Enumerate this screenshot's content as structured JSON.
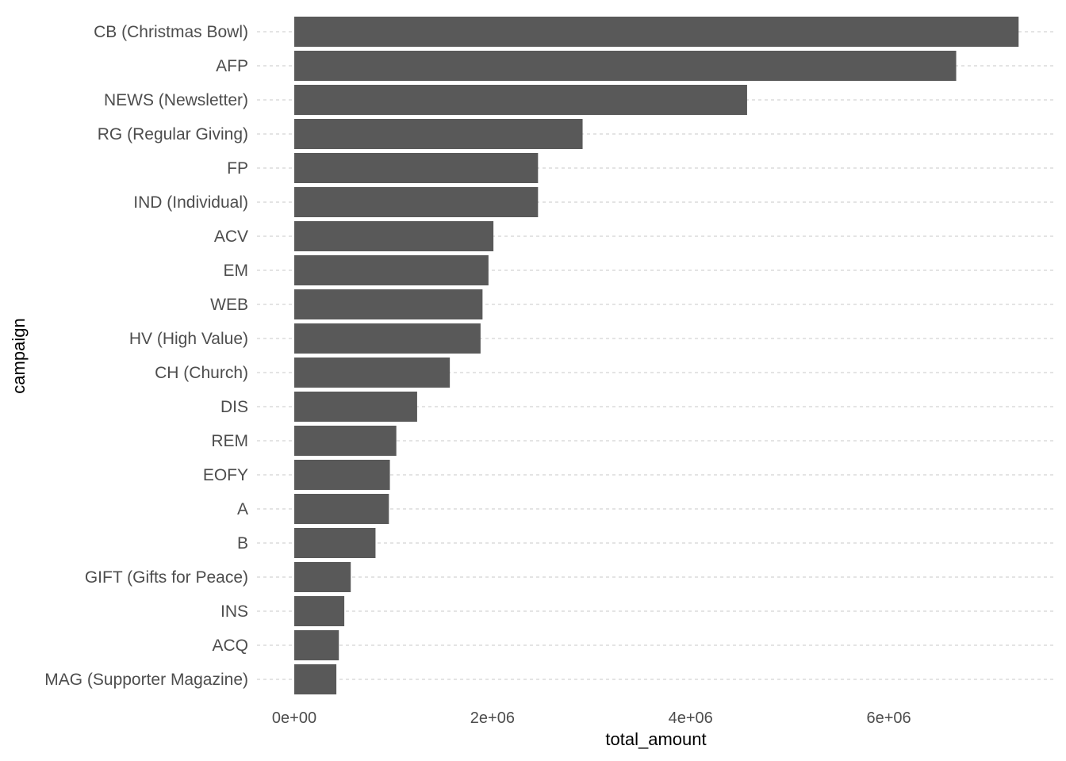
{
  "chart_data": {
    "type": "bar",
    "orientation": "horizontal",
    "xlabel": "total_amount",
    "ylabel": "campaign",
    "xlim": [
      0,
      7300000
    ],
    "x_ticks": [
      0,
      2000000,
      4000000,
      6000000
    ],
    "x_tick_labels": [
      "0e+00",
      "2e+06",
      "4e+06",
      "6e+06"
    ],
    "grid": "horizontal-dashed",
    "bar_color": "#595959",
    "categories": [
      "CB (Christmas Bowl)",
      "AFP",
      "NEWS (Newsletter)",
      "RG (Regular Giving)",
      "FP",
      "IND (Individual)",
      "ACV",
      "EM",
      "WEB",
      "HV (High Value)",
      "CH (Church)",
      "DIS",
      "REM",
      "EOFY",
      "A",
      "B",
      "GIFT (Gifts for Peace)",
      "INS",
      "ACQ",
      "MAG (Supporter Magazine)"
    ],
    "values": [
      7310000,
      6680000,
      4570000,
      2910000,
      2460000,
      2460000,
      2010000,
      1960000,
      1900000,
      1880000,
      1570000,
      1240000,
      1030000,
      965000,
      955000,
      820000,
      570000,
      505000,
      450000,
      425000
    ]
  }
}
